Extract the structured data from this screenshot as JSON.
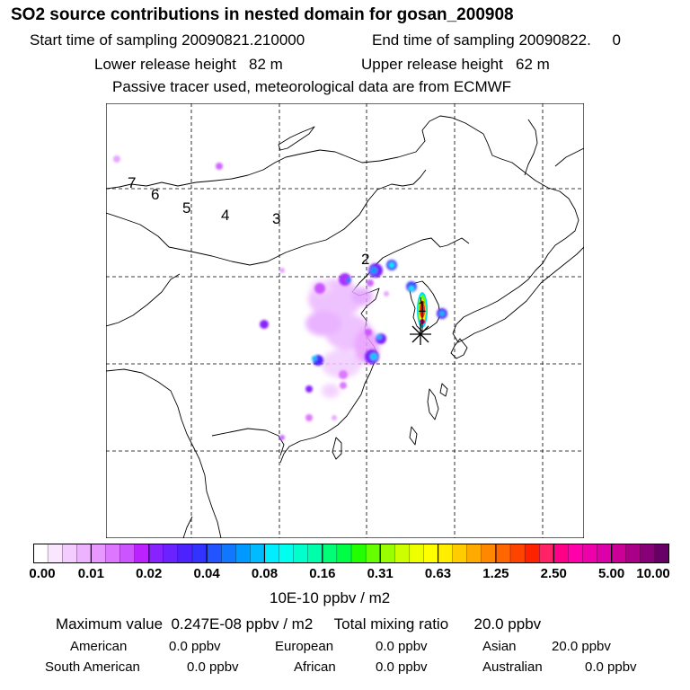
{
  "header": {
    "title": "SO2 source contributions in nested domain for gosan_200908",
    "start_label": "Start time of sampling 20090821.210000",
    "end_label": "End time of sampling 20090822.     0",
    "lower_release": "Lower release height   82 m",
    "upper_release": "Upper release height   62 m",
    "tracer_note": "Passive tracer used, meteorological data are from ECMWF"
  },
  "map": {
    "trajectory_labels": [
      "7",
      "6",
      "5",
      "4",
      "3",
      "2",
      "1"
    ],
    "receptor_marker": "star"
  },
  "colorbar": {
    "tick_labels": [
      "0.00",
      "0.01",
      "0.02",
      "0.04",
      "0.08",
      "0.16",
      "0.31",
      "0.63",
      "1.25",
      "2.50",
      "5.00",
      "10.00"
    ],
    "colors": [
      "#ffffff",
      "#fbe6ff",
      "#f5ccff",
      "#eeb3ff",
      "#e899ff",
      "#dd77ff",
      "#cc55ff",
      "#bb22ff",
      "#8822ff",
      "#6a22ff",
      "#4d22ff",
      "#3333ff",
      "#2255ff",
      "#1177ff",
      "#0099ff",
      "#00bbff",
      "#00eeff",
      "#00ffee",
      "#00ffcc",
      "#00ffaa",
      "#00ff77",
      "#00ff44",
      "#22ff00",
      "#66ff00",
      "#99ff00",
      "#ccff00",
      "#eeff00",
      "#ffff00",
      "#ffee00",
      "#ffcc00",
      "#ffaa00",
      "#ff8800",
      "#ff6600",
      "#ff4400",
      "#ff2200",
      "#ff2266",
      "#ff0088",
      "#ff00aa",
      "#ee00aa",
      "#dd00aa",
      "#cc0099",
      "#aa0088",
      "#880077",
      "#660066"
    ],
    "unit_label": "10E-10 ppbv / m2"
  },
  "summary": {
    "max_line": "Maximum value  0.247E-08 ppbv / m2     Total mixing ratio      20.0 ppbv",
    "regions": [
      {
        "name": "American",
        "value": "0.0 ppbv"
      },
      {
        "name": "European",
        "value": "0.0 ppbv"
      },
      {
        "name": "Asian",
        "value": "20.0 ppbv"
      },
      {
        "name": "South American",
        "value": "0.0 ppbv"
      },
      {
        "name": "African",
        "value": "0.0 ppbv"
      },
      {
        "name": "Australian",
        "value": "0.0 ppbv"
      }
    ]
  }
}
